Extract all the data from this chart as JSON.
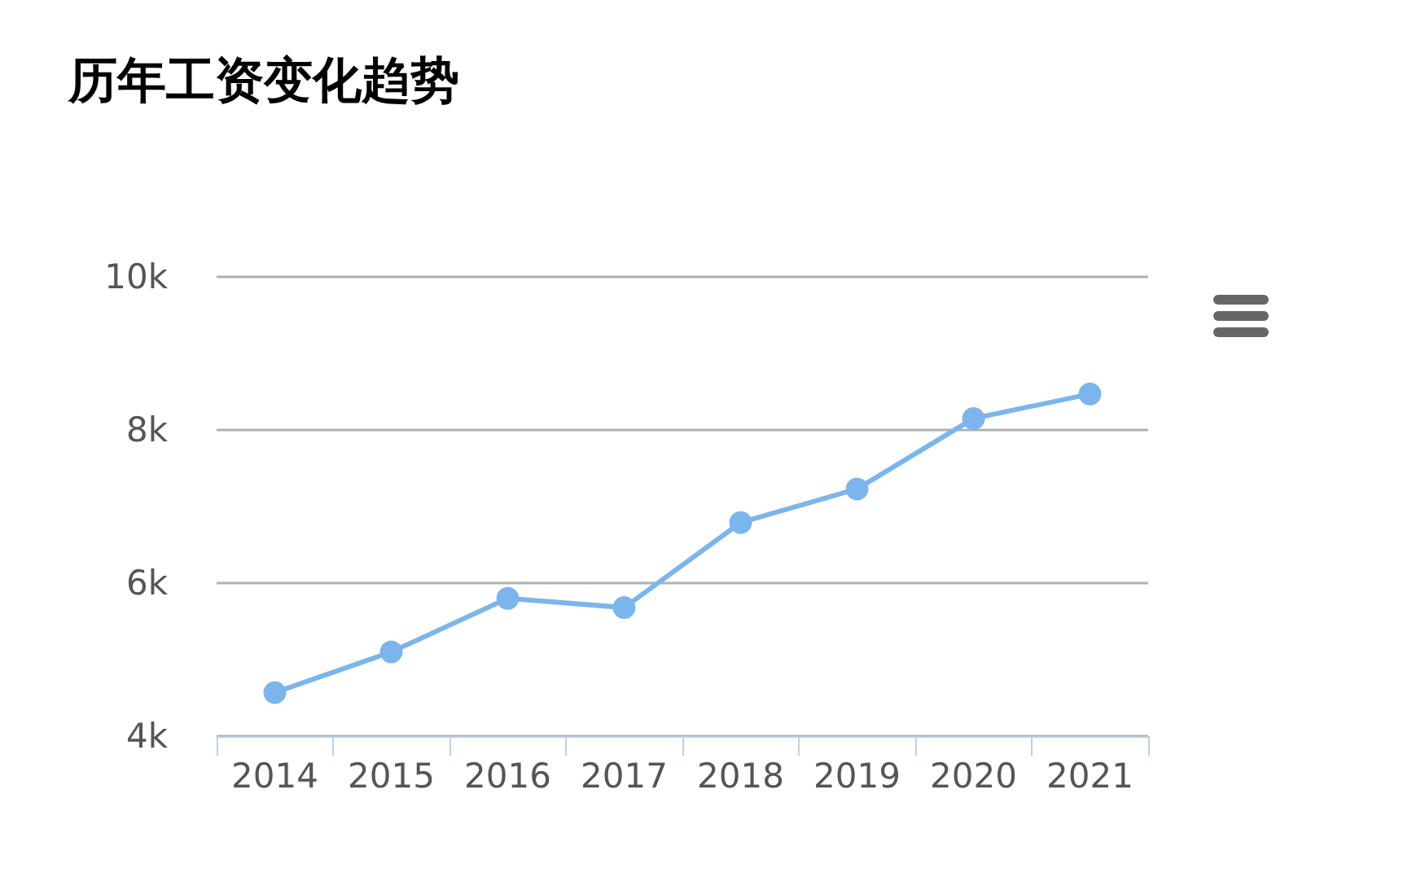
{
  "chart_data": {
    "type": "line",
    "title": "历年工资变化趋势",
    "categories": [
      "2014",
      "2015",
      "2016",
      "2017",
      "2018",
      "2019",
      "2020",
      "2021"
    ],
    "series": [
      {
        "color": "#7cb5ec",
        "values": [
          4570,
          5100,
          5800,
          5680,
          6790,
          7230,
          8150,
          8470
        ]
      }
    ],
    "ylim": [
      4000,
      10000
    ],
    "yticks": [
      {
        "value": 4000,
        "label": "4k"
      },
      {
        "value": 6000,
        "label": "6k"
      },
      {
        "value": 8000,
        "label": "8k"
      },
      {
        "value": 10000,
        "label": "10k"
      }
    ],
    "grid": "y",
    "marker": "circle",
    "line_style": "solid"
  }
}
